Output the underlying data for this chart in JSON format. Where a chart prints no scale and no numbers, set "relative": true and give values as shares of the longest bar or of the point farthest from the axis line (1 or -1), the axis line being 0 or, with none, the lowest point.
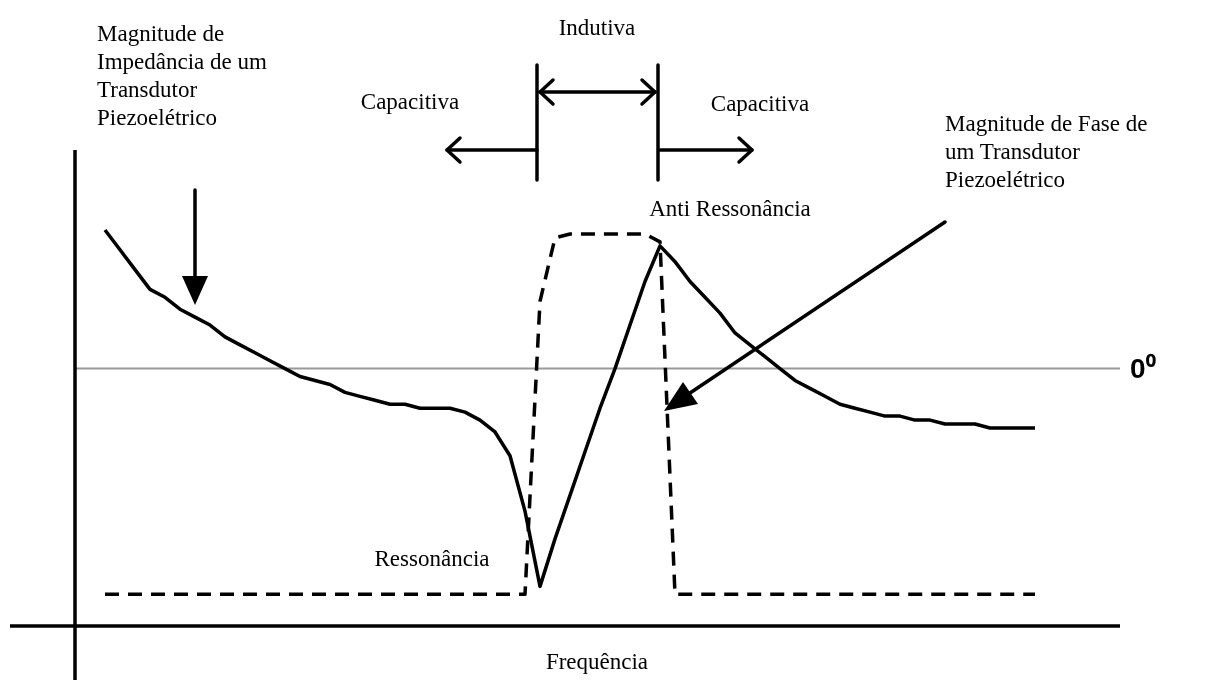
{
  "chart_data": {
    "type": "line",
    "relative": true,
    "legend": false,
    "marker": "none",
    "xlabel": "Frequência",
    "annotations": [
      "Magnitude de Impedância de um Transdutor Piezoelétrico",
      "Indutiva",
      "Capacitiva",
      "Capacitiva",
      "Anti Ressonância",
      "Ressonância",
      "Magnitude de Fase de um Transdutor Piezoelétrico"
    ],
    "categories": [
      null,
      null,
      null,
      null,
      null,
      null,
      null,
      null,
      null,
      null,
      null,
      null,
      null,
      null,
      null,
      null,
      null,
      null,
      null,
      null,
      null,
      null,
      null,
      null,
      null,
      null,
      null,
      null,
      null,
      null,
      null,
      null,
      null,
      null,
      null,
      null,
      null,
      null,
      null,
      null,
      null,
      null,
      null,
      null,
      null,
      null,
      null,
      null,
      null,
      null,
      null,
      null,
      null,
      null,
      null,
      null,
      null,
      null,
      null,
      null,
      null,
      null,
      null
    ],
    "series": [
      {
        "color": "#000000",
        "line_style": "solid",
        "values": [
          1.0,
          0.95,
          0.9,
          0.85,
          0.83,
          0.8,
          0.78,
          0.76,
          0.73,
          0.71,
          0.69,
          0.67,
          0.65,
          0.63,
          0.62,
          0.61,
          0.59,
          0.58,
          0.57,
          0.56,
          0.56,
          0.55,
          0.55,
          0.55,
          0.54,
          0.52,
          0.49,
          0.43,
          0.29,
          0.1,
          0.22,
          0.33,
          0.44,
          0.55,
          0.65,
          0.76,
          0.87,
          0.96,
          0.92,
          0.87,
          0.83,
          0.79,
          0.74,
          0.71,
          0.68,
          0.65,
          0.62,
          0.6,
          0.58,
          0.56,
          0.55,
          0.54,
          0.53,
          0.53,
          0.52,
          0.52,
          0.51,
          0.51,
          0.51,
          0.5,
          0.5,
          0.5,
          0.5
        ]
      },
      {
        "color": "#000000",
        "line_style": "dashed",
        "values": [
          0.08,
          0.08,
          0.08,
          0.08,
          0.08,
          0.08,
          0.08,
          0.08,
          0.08,
          0.08,
          0.08,
          0.08,
          0.08,
          0.08,
          0.08,
          0.08,
          0.08,
          0.08,
          0.08,
          0.08,
          0.08,
          0.08,
          0.08,
          0.08,
          0.08,
          0.08,
          0.08,
          0.08,
          0.08,
          0.82,
          0.98,
          0.99,
          0.99,
          0.99,
          0.99,
          0.99,
          0.99,
          0.97,
          0.08,
          0.08,
          0.08,
          0.08,
          0.08,
          0.08,
          0.08,
          0.08,
          0.08,
          0.08,
          0.08,
          0.08,
          0.08,
          0.08,
          0.08,
          0.08,
          0.08,
          0.08,
          0.08,
          0.08,
          0.08,
          0.08,
          0.08,
          0.08,
          0.08
        ]
      }
    ],
    "ref_lines": [
      {
        "axis": "y",
        "value": 0.65,
        "label": "0⁰",
        "color": "#999999"
      }
    ]
  }
}
